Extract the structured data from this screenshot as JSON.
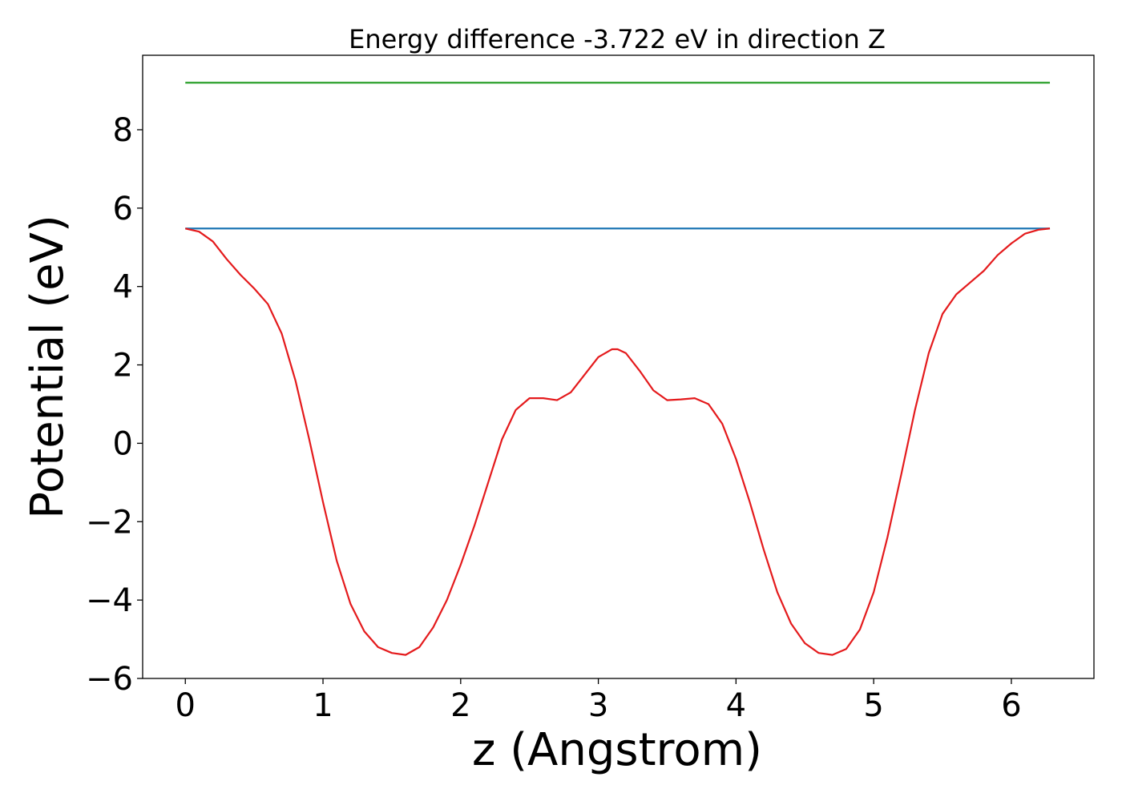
{
  "chart_data": {
    "type": "line",
    "title": "Energy difference -3.722 eV in direction Z",
    "xlabel": "z (Angstrom)",
    "ylabel": "Potential (eV)",
    "xlim": [
      -0.31,
      6.6
    ],
    "ylim": [
      -6.0,
      9.9
    ],
    "xticks": [
      0,
      1,
      2,
      3,
      4,
      5,
      6
    ],
    "yticks": [
      -6,
      -4,
      -2,
      0,
      2,
      4,
      6,
      8
    ],
    "xtick_labels": [
      "0",
      "1",
      "2",
      "3",
      "4",
      "5",
      "6"
    ],
    "ytick_labels": [
      "−6",
      "−4",
      "−2",
      "0",
      "2",
      "4",
      "6",
      "8"
    ],
    "grid": false,
    "legend": "none",
    "series": [
      {
        "color": "#2ca02c",
        "x": [
          0,
          6.28
        ],
        "y": [
          9.2,
          9.2
        ]
      },
      {
        "color": "#1f77b4",
        "x": [
          0,
          6.28
        ],
        "y": [
          5.48,
          5.48
        ]
      },
      {
        "color": "#e41a1c",
        "x": [
          0,
          0.1,
          0.2,
          0.3,
          0.4,
          0.5,
          0.6,
          0.7,
          0.8,
          0.9,
          1.0,
          1.1,
          1.2,
          1.3,
          1.4,
          1.5,
          1.6,
          1.7,
          1.8,
          1.9,
          2.0,
          2.1,
          2.2,
          2.3,
          2.4,
          2.5,
          2.6,
          2.7,
          2.8,
          2.9,
          3.0,
          3.1,
          3.14,
          3.2,
          3.3,
          3.4,
          3.5,
          3.6,
          3.7,
          3.8,
          3.9,
          4.0,
          4.1,
          4.2,
          4.3,
          4.4,
          4.5,
          4.6,
          4.7,
          4.8,
          4.9,
          5.0,
          5.1,
          5.2,
          5.3,
          5.4,
          5.5,
          5.6,
          5.7,
          5.8,
          5.9,
          6.0,
          6.1,
          6.2,
          6.28
        ],
        "y": [
          5.48,
          5.4,
          5.15,
          4.7,
          4.3,
          3.95,
          3.55,
          2.8,
          1.6,
          0.1,
          -1.5,
          -3.0,
          -4.1,
          -4.8,
          -5.2,
          -5.35,
          -5.4,
          -5.2,
          -4.7,
          -4.0,
          -3.1,
          -2.1,
          -1.0,
          0.1,
          0.85,
          1.15,
          1.15,
          1.1,
          1.3,
          1.75,
          2.2,
          2.4,
          2.4,
          2.3,
          1.85,
          1.35,
          1.1,
          1.12,
          1.15,
          1.0,
          0.5,
          -0.4,
          -1.5,
          -2.7,
          -3.8,
          -4.6,
          -5.1,
          -5.35,
          -5.4,
          -5.25,
          -4.75,
          -3.8,
          -2.4,
          -0.8,
          0.85,
          2.3,
          3.3,
          3.8,
          4.1,
          4.4,
          4.8,
          5.1,
          5.35,
          5.45,
          5.48
        ]
      }
    ]
  }
}
